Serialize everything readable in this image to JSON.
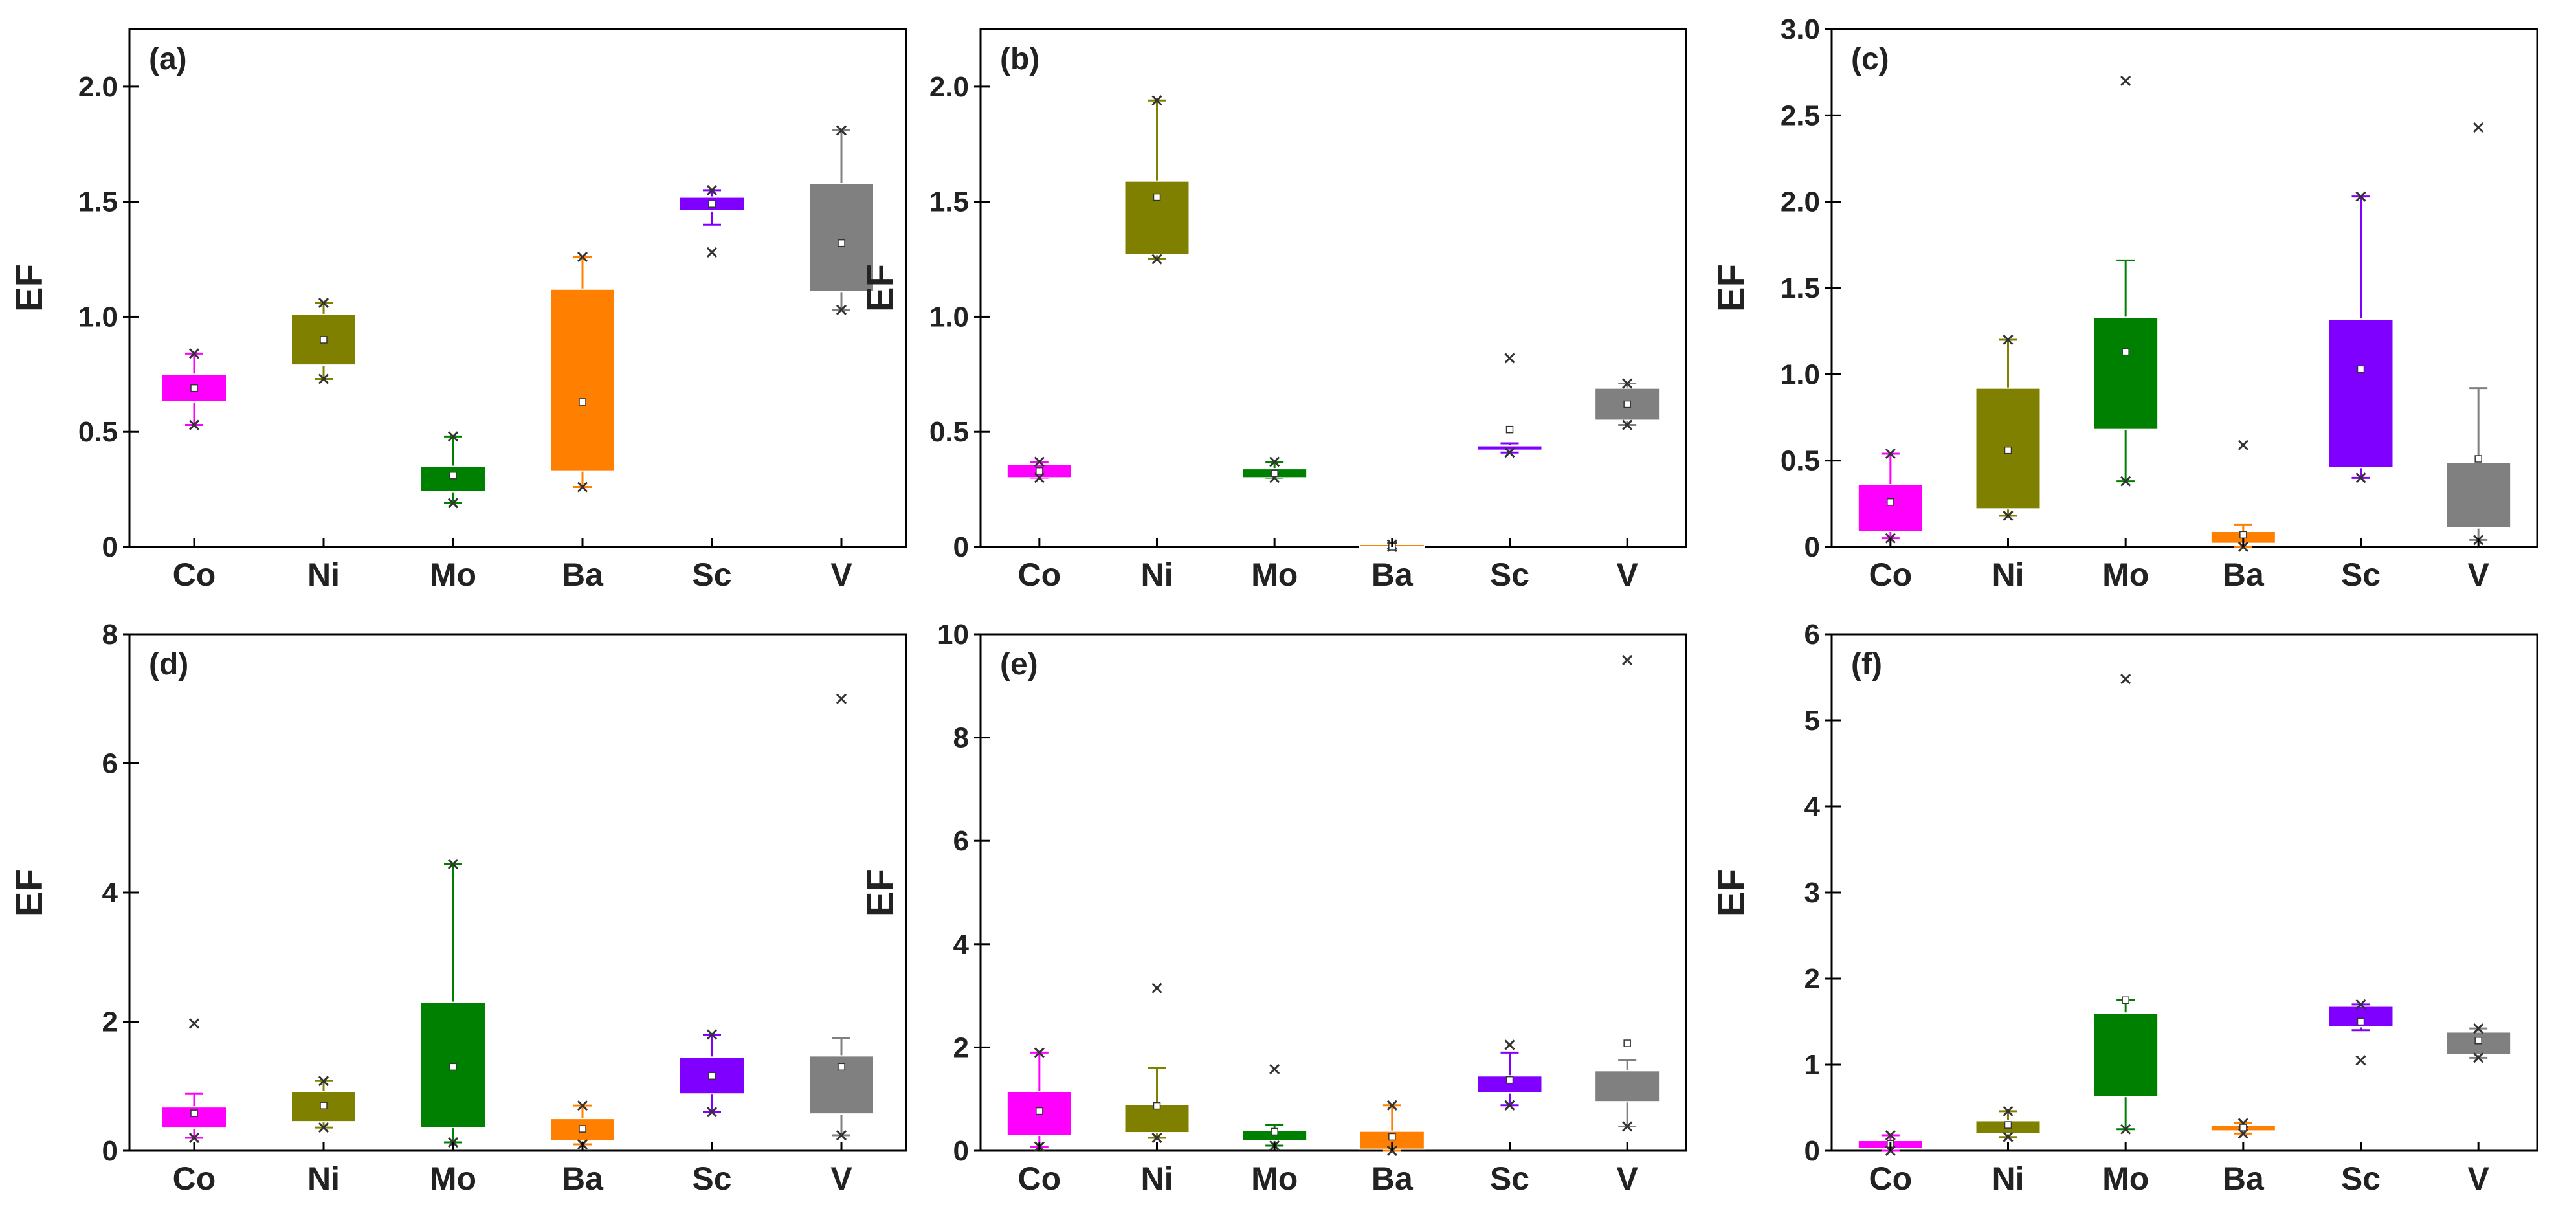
{
  "ylabel": "EF",
  "categories": [
    "Co",
    "Ni",
    "Mo",
    "Ba",
    "Sc",
    "V"
  ],
  "colors": {
    "Co": "#ff00ff",
    "Ni": "#808000",
    "Mo": "#008000",
    "Ba": "#ff8000",
    "Sc": "#8000ff",
    "V": "#808080"
  },
  "chart_data": [
    {
      "type": "box",
      "panel_label": "(a)",
      "ylabel": "EF",
      "categories": [
        "Co",
        "Ni",
        "Mo",
        "Ba",
        "Sc",
        "V"
      ],
      "ylim": [
        0,
        2.25
      ],
      "yticks": [
        0,
        0.5,
        1.0,
        1.5,
        2.0
      ],
      "ytick_labels": [
        "0",
        "0.5",
        "1.0",
        "1.5",
        "2.0"
      ],
      "boxes": [
        {
          "q1": 0.63,
          "q3": 0.75,
          "whisker_low": 0.53,
          "whisker_high": 0.84,
          "mean": 0.69,
          "min": 0.53,
          "max": 0.84
        },
        {
          "q1": 0.79,
          "q3": 1.01,
          "whisker_low": 0.73,
          "whisker_high": 1.06,
          "mean": 0.9,
          "min": 0.73,
          "max": 1.06
        },
        {
          "q1": 0.24,
          "q3": 0.35,
          "whisker_low": 0.19,
          "whisker_high": 0.48,
          "mean": 0.31,
          "min": 0.19,
          "max": 0.48
        },
        {
          "q1": 0.33,
          "q3": 1.12,
          "whisker_low": 0.26,
          "whisker_high": 1.26,
          "mean": 0.63,
          "min": 0.26,
          "max": 1.26
        },
        {
          "q1": 1.46,
          "q3": 1.52,
          "whisker_low": 1.4,
          "whisker_high": 1.55,
          "mean": 1.49,
          "min": 1.28,
          "max": 1.55
        },
        {
          "q1": 1.11,
          "q3": 1.58,
          "whisker_low": 1.03,
          "whisker_high": 1.81,
          "mean": 1.32,
          "min": 1.03,
          "max": 1.81
        }
      ]
    },
    {
      "type": "box",
      "panel_label": "(b)",
      "ylabel": "EF",
      "categories": [
        "Co",
        "Ni",
        "Mo",
        "Ba",
        "Sc",
        "V"
      ],
      "ylim": [
        0,
        2.25
      ],
      "yticks": [
        0,
        0.5,
        1.0,
        1.5,
        2.0
      ],
      "ytick_labels": [
        "0",
        "0.5",
        "1.0",
        "1.5",
        "2.0"
      ],
      "boxes": [
        {
          "q1": 0.3,
          "q3": 0.36,
          "whisker_low": 0.3,
          "whisker_high": 0.37,
          "mean": 0.33,
          "min": 0.3,
          "max": 0.37
        },
        {
          "q1": 1.27,
          "q3": 1.59,
          "whisker_low": 1.25,
          "whisker_high": 1.94,
          "mean": 1.52,
          "min": 1.25,
          "max": 1.94
        },
        {
          "q1": 0.3,
          "q3": 0.34,
          "whisker_low": 0.3,
          "whisker_high": 0.37,
          "mean": 0.32,
          "min": 0.3,
          "max": 0.37
        },
        {
          "q1": 0.0,
          "q3": 0.01,
          "whisker_low": 0.0,
          "whisker_high": 0.01,
          "mean": 0.0,
          "min": 0.0,
          "max": 0.01
        },
        {
          "q1": 0.42,
          "q3": 0.44,
          "whisker_low": 0.41,
          "whisker_high": 0.45,
          "mean": 0.51,
          "min": 0.41,
          "max": 0.82
        },
        {
          "q1": 0.55,
          "q3": 0.69,
          "whisker_low": 0.53,
          "whisker_high": 0.71,
          "mean": 0.62,
          "min": 0.53,
          "max": 0.71
        }
      ]
    },
    {
      "type": "box",
      "panel_label": "(c)",
      "ylabel": "EF",
      "categories": [
        "Co",
        "Ni",
        "Mo",
        "Ba",
        "Sc",
        "V"
      ],
      "ylim": [
        0,
        3.0
      ],
      "yticks": [
        0,
        0.5,
        1.0,
        1.5,
        2.0,
        2.5,
        3.0
      ],
      "ytick_labels": [
        "0",
        "0.5",
        "1.0",
        "1.5",
        "2.0",
        "2.5",
        "3.0"
      ],
      "boxes": [
        {
          "q1": 0.09,
          "q3": 0.36,
          "whisker_low": 0.05,
          "whisker_high": 0.54,
          "mean": 0.26,
          "min": 0.05,
          "max": 0.54
        },
        {
          "q1": 0.22,
          "q3": 0.92,
          "whisker_low": 0.18,
          "whisker_high": 1.2,
          "mean": 0.56,
          "min": 0.18,
          "max": 1.2
        },
        {
          "q1": 0.68,
          "q3": 1.33,
          "whisker_low": 0.38,
          "whisker_high": 1.66,
          "mean": 1.13,
          "min": 0.38,
          "max": 2.7
        },
        {
          "q1": 0.02,
          "q3": 0.09,
          "whisker_low": 0.0,
          "whisker_high": 0.13,
          "mean": 0.07,
          "min": 0.0,
          "max": 0.59
        },
        {
          "q1": 0.46,
          "q3": 1.32,
          "whisker_low": 0.4,
          "whisker_high": 2.03,
          "mean": 1.03,
          "min": 0.4,
          "max": 2.03
        },
        {
          "q1": 0.11,
          "q3": 0.49,
          "whisker_low": 0.04,
          "whisker_high": 0.92,
          "mean": 0.51,
          "min": 0.04,
          "max": 2.43
        }
      ]
    },
    {
      "type": "box",
      "panel_label": "(d)",
      "ylabel": "EF",
      "categories": [
        "Co",
        "Ni",
        "Mo",
        "Ba",
        "Sc",
        "V"
      ],
      "ylim": [
        0,
        8
      ],
      "yticks": [
        0,
        2,
        4,
        6,
        8
      ],
      "ytick_labels": [
        "0",
        "2",
        "4",
        "6",
        "8"
      ],
      "boxes": [
        {
          "q1": 0.35,
          "q3": 0.68,
          "whisker_low": 0.2,
          "whisker_high": 0.88,
          "mean": 0.58,
          "min": 0.2,
          "max": 1.97
        },
        {
          "q1": 0.45,
          "q3": 0.92,
          "whisker_low": 0.36,
          "whisker_high": 1.08,
          "mean": 0.7,
          "min": 0.36,
          "max": 1.08
        },
        {
          "q1": 0.36,
          "q3": 2.3,
          "whisker_low": 0.13,
          "whisker_high": 4.44,
          "mean": 1.3,
          "min": 0.13,
          "max": 4.44
        },
        {
          "q1": 0.16,
          "q3": 0.5,
          "whisker_low": 0.1,
          "whisker_high": 0.7,
          "mean": 0.34,
          "min": 0.1,
          "max": 0.7
        },
        {
          "q1": 0.88,
          "q3": 1.45,
          "whisker_low": 0.6,
          "whisker_high": 1.8,
          "mean": 1.16,
          "min": 0.6,
          "max": 1.8
        },
        {
          "q1": 0.57,
          "q3": 1.47,
          "whisker_low": 0.24,
          "whisker_high": 1.75,
          "mean": 1.3,
          "min": 0.24,
          "max": 7.0
        }
      ]
    },
    {
      "type": "box",
      "panel_label": "(e)",
      "ylabel": "EF",
      "categories": [
        "Co",
        "Ni",
        "Mo",
        "Ba",
        "Sc",
        "V"
      ],
      "ylim": [
        0,
        10
      ],
      "yticks": [
        0,
        2,
        4,
        6,
        8,
        10
      ],
      "ytick_labels": [
        "0",
        "2",
        "4",
        "6",
        "8",
        "10"
      ],
      "boxes": [
        {
          "q1": 0.3,
          "q3": 1.15,
          "whisker_low": 0.08,
          "whisker_high": 1.9,
          "mean": 0.77,
          "min": 0.08,
          "max": 1.9
        },
        {
          "q1": 0.35,
          "q3": 0.9,
          "whisker_low": 0.25,
          "whisker_high": 1.6,
          "mean": 0.87,
          "min": 0.25,
          "max": 3.15
        },
        {
          "q1": 0.2,
          "q3": 0.4,
          "whisker_low": 0.1,
          "whisker_high": 0.5,
          "mean": 0.37,
          "min": 0.1,
          "max": 1.58
        },
        {
          "q1": 0.03,
          "q3": 0.38,
          "whisker_low": 0.0,
          "whisker_high": 0.88,
          "mean": 0.27,
          "min": 0.0,
          "max": 0.88
        },
        {
          "q1": 1.12,
          "q3": 1.45,
          "whisker_low": 0.88,
          "whisker_high": 1.9,
          "mean": 1.37,
          "min": 0.88,
          "max": 2.05
        },
        {
          "q1": 0.95,
          "q3": 1.55,
          "whisker_low": 0.47,
          "whisker_high": 1.75,
          "mean": 2.08,
          "min": 0.47,
          "max": 9.5
        }
      ]
    },
    {
      "type": "box",
      "panel_label": "(f)",
      "ylabel": "EF",
      "categories": [
        "Co",
        "Ni",
        "Mo",
        "Ba",
        "Sc",
        "V"
      ],
      "ylim": [
        0,
        6
      ],
      "yticks": [
        0,
        1,
        2,
        3,
        4,
        5,
        6
      ],
      "ytick_labels": [
        "0",
        "1",
        "2",
        "3",
        "4",
        "5",
        "6"
      ],
      "boxes": [
        {
          "q1": 0.03,
          "q3": 0.12,
          "whisker_low": 0.0,
          "whisker_high": 0.18,
          "mean": 0.08,
          "min": 0.0,
          "max": 0.18
        },
        {
          "q1": 0.2,
          "q3": 0.35,
          "whisker_low": 0.16,
          "whisker_high": 0.46,
          "mean": 0.3,
          "min": 0.16,
          "max": 0.46
        },
        {
          "q1": 0.63,
          "q3": 1.6,
          "whisker_low": 0.25,
          "whisker_high": 1.75,
          "mean": 1.75,
          "min": 0.25,
          "max": 5.48
        },
        {
          "q1": 0.23,
          "q3": 0.3,
          "whisker_low": 0.2,
          "whisker_high": 0.32,
          "mean": 0.27,
          "min": 0.2,
          "max": 0.32
        },
        {
          "q1": 1.44,
          "q3": 1.68,
          "whisker_low": 1.4,
          "whisker_high": 1.7,
          "mean": 1.5,
          "min": 1.05,
          "max": 1.7
        },
        {
          "q1": 1.12,
          "q3": 1.38,
          "whisker_low": 1.08,
          "whisker_high": 1.42,
          "mean": 1.28,
          "min": 1.08,
          "max": 1.42
        }
      ]
    }
  ]
}
